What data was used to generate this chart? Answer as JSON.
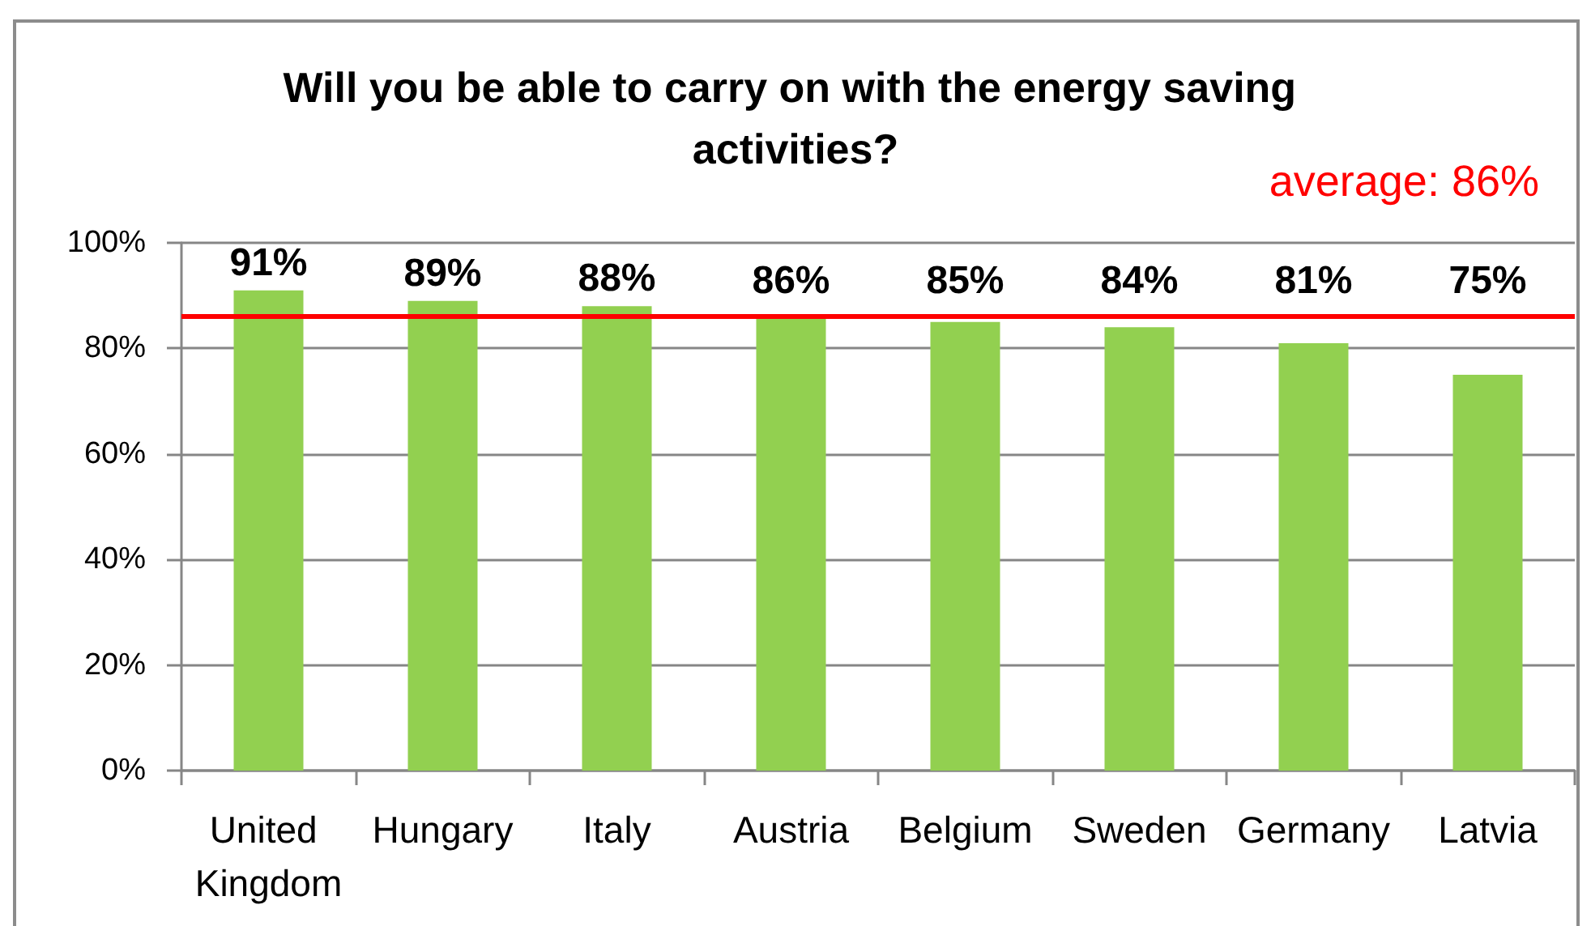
{
  "chart_data": {
    "type": "bar",
    "title": "Will you be able to carry on with the energy saving activities?",
    "categories": [
      "United Kingdom",
      "Hungary",
      "Italy",
      "Austria",
      "Belgium",
      "Sweden",
      "Germany",
      "Latvia"
    ],
    "values": [
      91,
      89,
      88,
      86,
      85,
      84,
      81,
      75
    ],
    "color": "#92d050",
    "value_labels": [
      "91%",
      "89%",
      "88%",
      "86%",
      "85%",
      "84%",
      "81%",
      "75%"
    ],
    "ylim": [
      0,
      100
    ],
    "yticks": [
      {
        "value": 0,
        "label": "0%"
      },
      {
        "value": 20,
        "label": "20%"
      },
      {
        "value": 40,
        "label": "40%"
      },
      {
        "value": 60,
        "label": "60%"
      },
      {
        "value": 80,
        "label": "80%"
      },
      {
        "value": 100,
        "label": "100%"
      }
    ],
    "grid": "y",
    "ref_lines": [
      {
        "axis": "y",
        "value": 86,
        "label": "average: 86%",
        "color": "#ff0000",
        "line_style": "solid"
      }
    ]
  }
}
